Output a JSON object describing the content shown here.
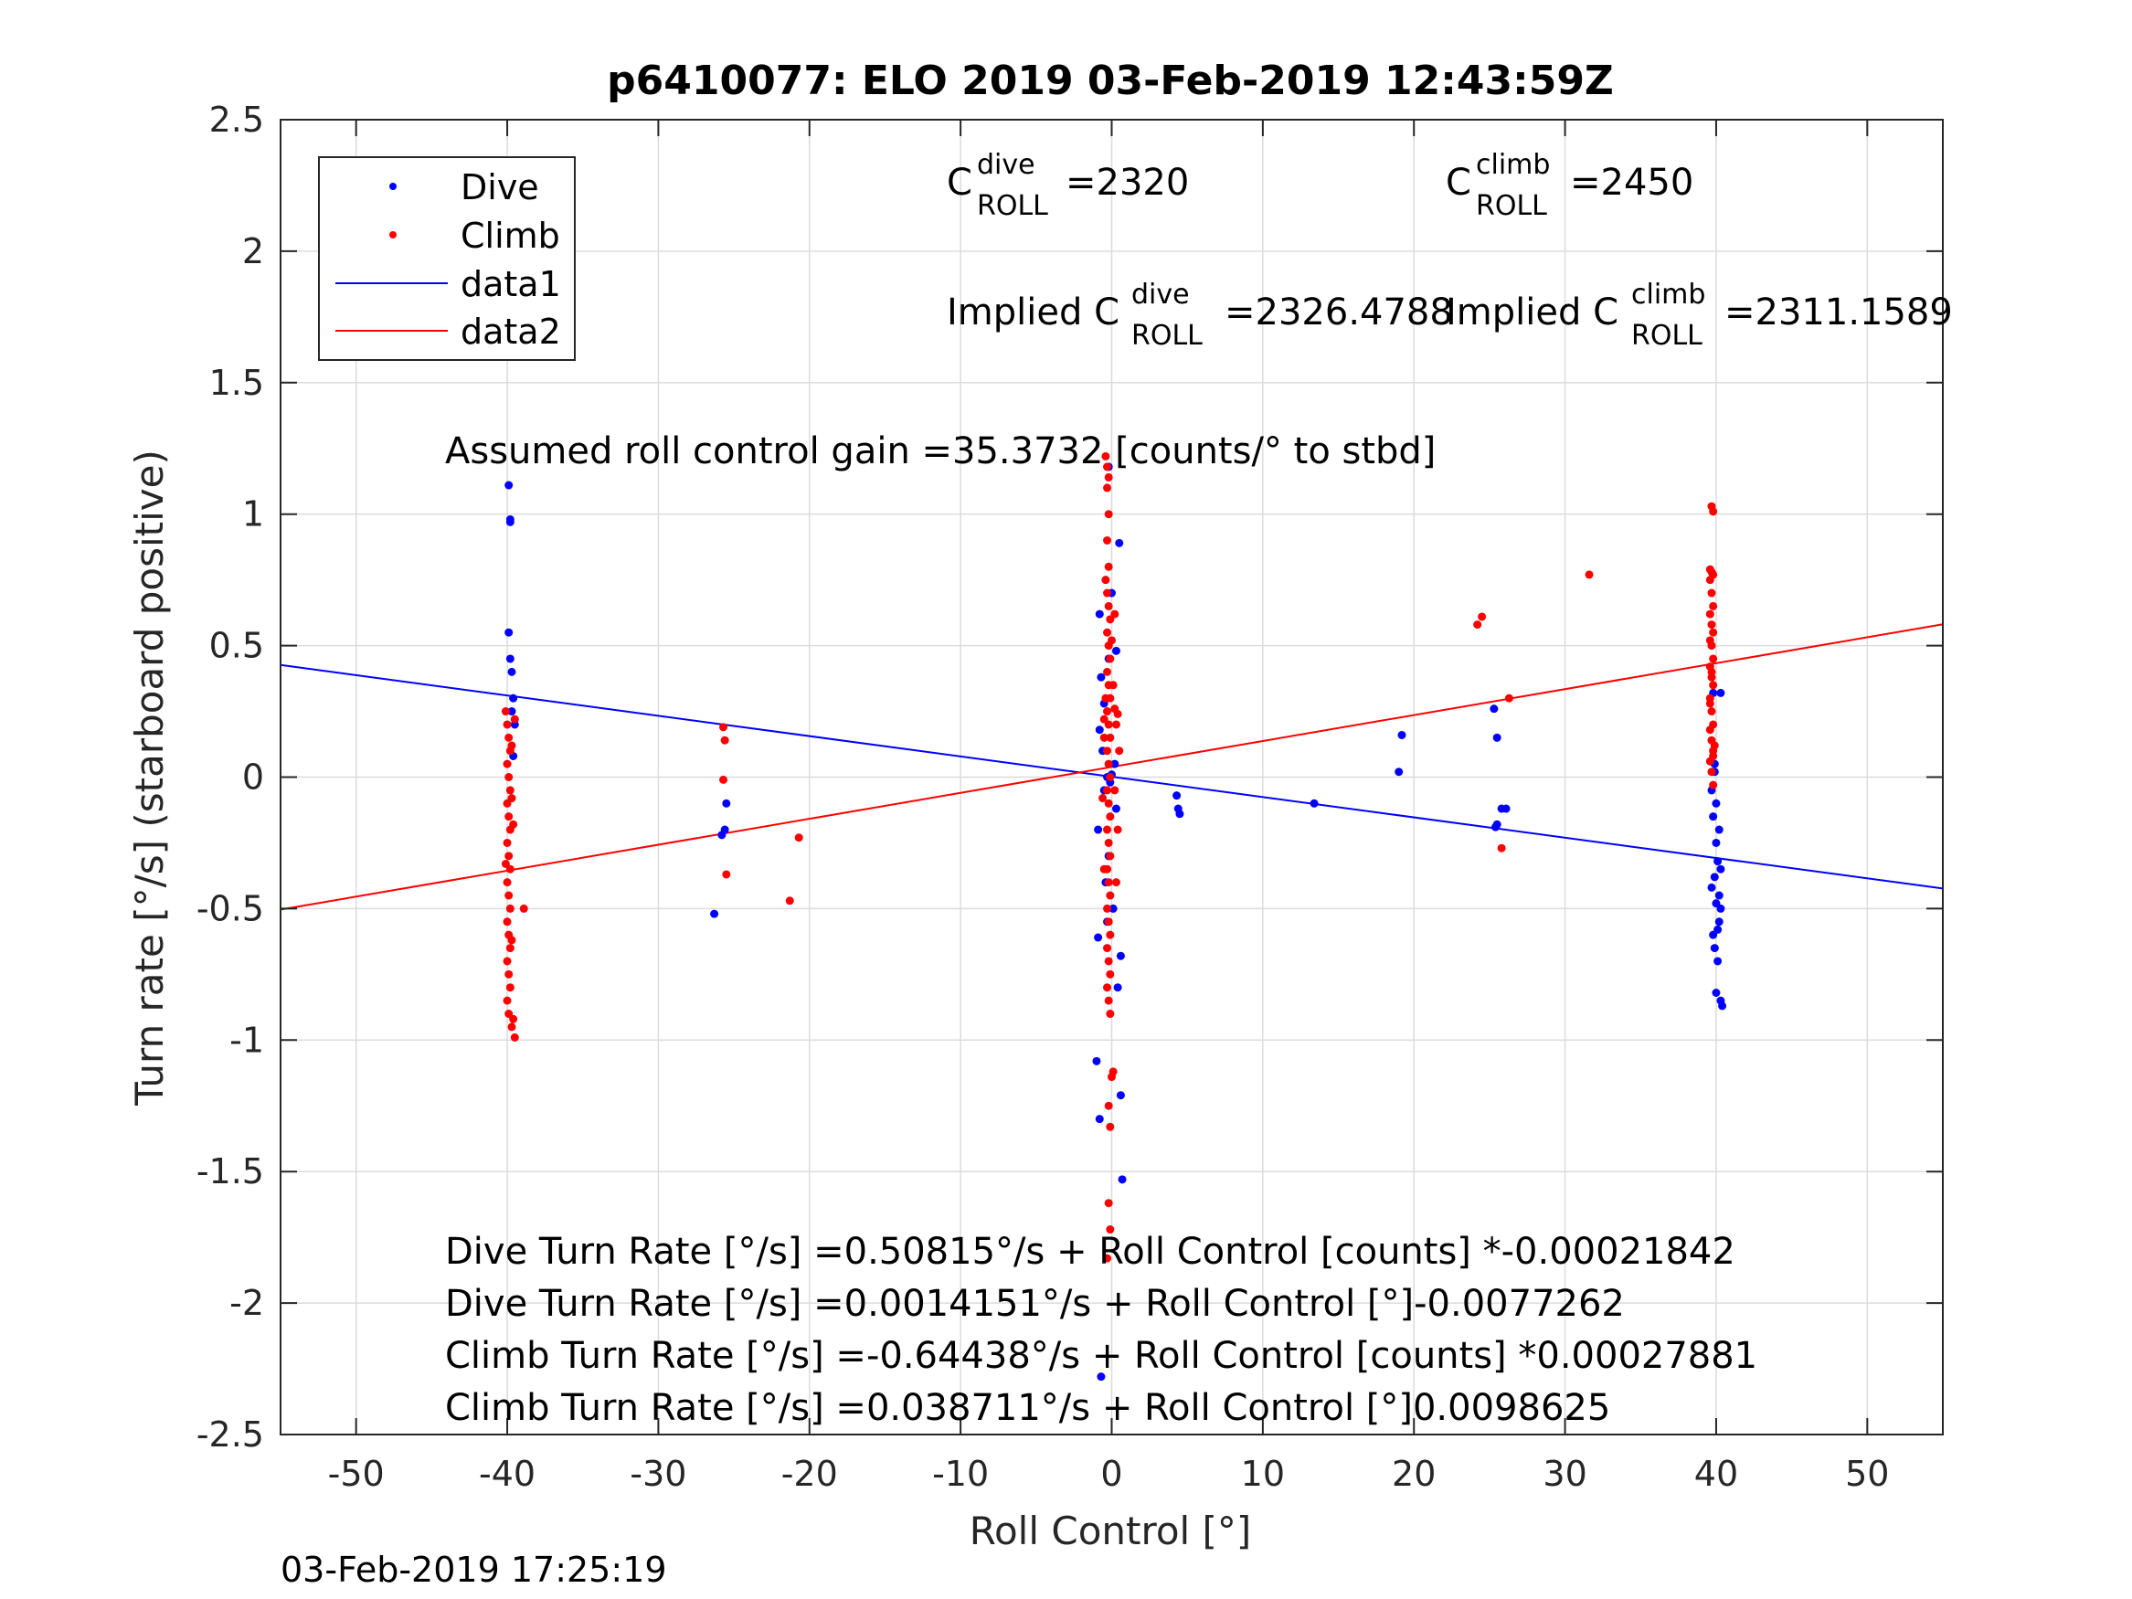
{
  "figure": {
    "title": "p6410077: ELO 2019 03-Feb-2019 12:43:59Z",
    "timestamp": "03-Feb-2019 17:25:19"
  },
  "annotations": {
    "c_dive": {
      "pre": "C",
      "sup": "dive",
      "sub": "ROLL",
      "value": "=2320"
    },
    "c_climb": {
      "pre": "C",
      "sup": "climb",
      "sub": "ROLL",
      "value": "=2450"
    },
    "implied_dive": {
      "pre": "Implied C",
      "sup": "dive",
      "sub": "ROLL",
      "value": "=2326.4788"
    },
    "implied_climb": {
      "pre": "Implied C",
      "sup": "climb",
      "sub": "ROLL",
      "value": "=2311.1589"
    },
    "gain": "Assumed roll control gain =35.3732 [counts/° to stbd]",
    "equations": [
      "Dive Turn Rate [°/s] =0.50815°/s + Roll Control [counts] *-0.00021842",
      "Dive Turn Rate [°/s] =0.0014151°/s + Roll Control [°]-0.0077262",
      "Climb Turn Rate [°/s] =-0.64438°/s + Roll Control [counts] *0.00027881",
      "Climb Turn Rate [°/s] =0.038711°/s + Roll Control [°]0.0098625"
    ]
  },
  "colors": {
    "dive": "#0000ff",
    "climb": "#ff0000",
    "grid": "#dcdcdc",
    "axis": "#262626"
  },
  "chart_data": {
    "type": "scatter",
    "title": "p6410077: ELO 2019 03-Feb-2019 12:43:59Z",
    "xlabel": "Roll Control [°]",
    "ylabel": "Turn rate [°/s] (starboard positive)",
    "xlim": [
      -55,
      55
    ],
    "ylim": [
      -2.5,
      2.5
    ],
    "xticks": [
      -50,
      -40,
      -30,
      -20,
      -10,
      0,
      10,
      20,
      30,
      40,
      50
    ],
    "xtick_labels": [
      "-50",
      "-40",
      "-30",
      "-20",
      "-10",
      "0",
      "10",
      "20",
      "30",
      "40",
      "50"
    ],
    "yticks": [
      -2.5,
      -2,
      -1.5,
      -1,
      -0.5,
      0,
      0.5,
      1,
      1.5,
      2,
      2.5
    ],
    "ytick_labels": [
      "-2.5",
      "-2",
      "-1.5",
      "-1",
      "-0.5",
      "0",
      "0.5",
      "1",
      "1.5",
      "2",
      "2.5"
    ],
    "grid": true,
    "legend": {
      "position": "top-left",
      "entries": [
        "Dive",
        "Climb",
        "data1",
        "data2"
      ]
    },
    "series": [
      {
        "name": "Dive",
        "kind": "points",
        "color": "#0000ff",
        "points": [
          [
            -39.9,
            1.11
          ],
          [
            -39.8,
            0.98
          ],
          [
            -39.8,
            0.97
          ],
          [
            -39.9,
            0.55
          ],
          [
            -39.8,
            0.45
          ],
          [
            -39.7,
            0.4
          ],
          [
            -39.6,
            0.3
          ],
          [
            -39.5,
            0.2
          ],
          [
            -39.6,
            0.08
          ],
          [
            -39.7,
            0.25
          ],
          [
            -26.3,
            -0.52
          ],
          [
            -25.8,
            -0.22
          ],
          [
            -25.6,
            -0.2
          ],
          [
            -25.5,
            -0.1
          ],
          [
            -1.0,
            -1.08
          ],
          [
            -0.8,
            -1.3
          ],
          [
            -0.9,
            -0.61
          ],
          [
            -0.9,
            -0.2
          ],
          [
            -0.8,
            0.18
          ],
          [
            -0.7,
            0.38
          ],
          [
            -0.8,
            0.62
          ],
          [
            -0.6,
            0.1
          ],
          [
            -0.5,
            -0.05
          ],
          [
            -0.4,
            -0.4
          ],
          [
            -0.3,
            -0.55
          ],
          [
            -0.2,
            0.45
          ],
          [
            -0.3,
            0.0
          ],
          [
            -0.1,
            -0.02
          ],
          [
            0.0,
            0.01
          ],
          [
            0.2,
            0.05
          ],
          [
            0.3,
            -0.12
          ],
          [
            -0.2,
            -0.3
          ],
          [
            0.3,
            0.48
          ],
          [
            0.5,
            0.89
          ],
          [
            0.6,
            -0.68
          ],
          [
            0.6,
            -1.21
          ],
          [
            0.7,
            -1.53
          ],
          [
            0.4,
            -0.8
          ],
          [
            -0.2,
            1.18
          ],
          [
            0.0,
            0.7
          ],
          [
            -0.5,
            0.28
          ],
          [
            0.1,
            -0.5
          ],
          [
            -0.7,
            -2.28
          ],
          [
            4.3,
            -0.07
          ],
          [
            4.4,
            -0.12
          ],
          [
            4.5,
            -0.14
          ],
          [
            13.4,
            -0.1
          ],
          [
            19.2,
            0.16
          ],
          [
            19.0,
            0.02
          ],
          [
            25.3,
            0.26
          ],
          [
            25.5,
            0.15
          ],
          [
            25.5,
            -0.18
          ],
          [
            25.8,
            -0.12
          ],
          [
            26.1,
            -0.12
          ],
          [
            25.4,
            -0.19
          ],
          [
            39.8,
            0.32
          ],
          [
            39.9,
            0.05
          ],
          [
            39.7,
            -0.05
          ],
          [
            39.8,
            -0.15
          ],
          [
            40.0,
            -0.25
          ],
          [
            40.1,
            -0.32
          ],
          [
            39.9,
            -0.38
          ],
          [
            39.7,
            -0.42
          ],
          [
            40.0,
            -0.48
          ],
          [
            40.2,
            -0.55
          ],
          [
            39.8,
            -0.6
          ],
          [
            40.1,
            -0.7
          ],
          [
            40.0,
            -0.82
          ],
          [
            40.3,
            -0.85
          ],
          [
            40.4,
            -0.87
          ],
          [
            40.3,
            -0.5
          ],
          [
            40.2,
            -0.45
          ],
          [
            40.3,
            -0.35
          ],
          [
            40.2,
            -0.2
          ],
          [
            40.3,
            0.32
          ],
          [
            39.9,
            0.02
          ],
          [
            40.0,
            -0.1
          ],
          [
            40.1,
            -0.58
          ],
          [
            39.9,
            -0.65
          ]
        ]
      },
      {
        "name": "Climb",
        "kind": "points",
        "color": "#ff0000",
        "points": [
          [
            -40.1,
            0.25
          ],
          [
            -40.0,
            0.2
          ],
          [
            -39.9,
            0.15
          ],
          [
            -39.8,
            0.1
          ],
          [
            -40.0,
            0.05
          ],
          [
            -39.9,
            0.0
          ],
          [
            -39.8,
            -0.05
          ],
          [
            -40.0,
            -0.1
          ],
          [
            -39.9,
            -0.15
          ],
          [
            -39.8,
            -0.2
          ],
          [
            -40.0,
            -0.25
          ],
          [
            -39.9,
            -0.3
          ],
          [
            -39.8,
            -0.35
          ],
          [
            -40.0,
            -0.4
          ],
          [
            -39.9,
            -0.45
          ],
          [
            -39.8,
            -0.5
          ],
          [
            -40.0,
            -0.55
          ],
          [
            -39.9,
            -0.6
          ],
          [
            -39.8,
            -0.65
          ],
          [
            -40.0,
            -0.7
          ],
          [
            -39.9,
            -0.75
          ],
          [
            -39.8,
            -0.8
          ],
          [
            -40.0,
            -0.85
          ],
          [
            -39.9,
            -0.9
          ],
          [
            -39.7,
            -0.95
          ],
          [
            -39.5,
            -0.99
          ],
          [
            -39.6,
            -0.92
          ],
          [
            -39.7,
            -0.62
          ],
          [
            -39.6,
            -0.18
          ],
          [
            -39.5,
            0.22
          ],
          [
            -38.9,
            -0.5
          ],
          [
            -40.1,
            -0.33
          ],
          [
            -39.7,
            -0.08
          ],
          [
            -39.7,
            0.12
          ],
          [
            -25.7,
            0.19
          ],
          [
            -25.6,
            0.14
          ],
          [
            -25.7,
            -0.01
          ],
          [
            -25.5,
            -0.37
          ],
          [
            -20.7,
            -0.23
          ],
          [
            -21.3,
            -0.47
          ],
          [
            -0.4,
            1.22
          ],
          [
            -0.3,
            1.18
          ],
          [
            -0.2,
            1.14
          ],
          [
            -0.3,
            1.1
          ],
          [
            -0.2,
            1.0
          ],
          [
            -0.3,
            0.9
          ],
          [
            -0.2,
            0.8
          ],
          [
            -0.4,
            0.75
          ],
          [
            -0.3,
            0.7
          ],
          [
            -0.2,
            0.65
          ],
          [
            -0.1,
            0.6
          ],
          [
            -0.3,
            0.55
          ],
          [
            -0.2,
            0.5
          ],
          [
            -0.1,
            0.45
          ],
          [
            -0.3,
            0.4
          ],
          [
            -0.2,
            0.35
          ],
          [
            -0.1,
            0.3
          ],
          [
            -0.3,
            0.25
          ],
          [
            -0.2,
            0.2
          ],
          [
            -0.1,
            0.15
          ],
          [
            -0.3,
            0.1
          ],
          [
            -0.2,
            0.05
          ],
          [
            -0.1,
            0.0
          ],
          [
            -0.3,
            -0.05
          ],
          [
            -0.2,
            -0.1
          ],
          [
            -0.1,
            -0.15
          ],
          [
            -0.3,
            -0.2
          ],
          [
            -0.2,
            -0.25
          ],
          [
            -0.1,
            -0.3
          ],
          [
            -0.3,
            -0.35
          ],
          [
            -0.2,
            -0.4
          ],
          [
            -0.1,
            -0.45
          ],
          [
            -0.3,
            -0.5
          ],
          [
            -0.2,
            -0.55
          ],
          [
            -0.1,
            -0.6
          ],
          [
            -0.3,
            -0.65
          ],
          [
            -0.2,
            -0.7
          ],
          [
            -0.1,
            -0.75
          ],
          [
            -0.3,
            -0.8
          ],
          [
            -0.2,
            -0.85
          ],
          [
            -0.1,
            -0.9
          ],
          [
            0.0,
            -1.14
          ],
          [
            0.1,
            -1.12
          ],
          [
            -0.2,
            -1.25
          ],
          [
            -0.1,
            -1.33
          ],
          [
            -0.2,
            -1.62
          ],
          [
            -0.1,
            -1.72
          ],
          [
            -0.3,
            -1.83
          ],
          [
            0.2,
            0.26
          ],
          [
            0.4,
            0.24
          ],
          [
            0.5,
            0.1
          ],
          [
            0.3,
            0.2
          ],
          [
            0.1,
            0.35
          ],
          [
            -0.5,
            0.22
          ],
          [
            -0.6,
            -0.08
          ],
          [
            -0.5,
            0.15
          ],
          [
            0.3,
            -0.4
          ],
          [
            0.4,
            -0.2
          ],
          [
            0.2,
            -0.05
          ],
          [
            -0.4,
            0.3
          ],
          [
            -0.5,
            -0.35
          ],
          [
            0.0,
            0.52
          ],
          [
            0.2,
            0.62
          ],
          [
            24.2,
            0.58
          ],
          [
            24.5,
            0.61
          ],
          [
            25.8,
            -0.27
          ],
          [
            26.3,
            0.3
          ],
          [
            31.6,
            0.77
          ],
          [
            39.7,
            1.03
          ],
          [
            39.8,
            1.01
          ],
          [
            39.6,
            0.79
          ],
          [
            39.7,
            0.78
          ],
          [
            39.8,
            0.77
          ],
          [
            39.6,
            0.75
          ],
          [
            39.7,
            0.7
          ],
          [
            39.8,
            0.65
          ],
          [
            39.6,
            0.62
          ],
          [
            39.7,
            0.58
          ],
          [
            39.8,
            0.55
          ],
          [
            39.6,
            0.52
          ],
          [
            39.7,
            0.5
          ],
          [
            39.8,
            0.45
          ],
          [
            39.6,
            0.42
          ],
          [
            39.7,
            0.38
          ],
          [
            39.8,
            0.35
          ],
          [
            39.6,
            0.3
          ],
          [
            39.7,
            0.25
          ],
          [
            39.8,
            0.2
          ],
          [
            39.6,
            0.18
          ],
          [
            39.7,
            0.14
          ],
          [
            39.8,
            0.1
          ],
          [
            39.6,
            0.06
          ],
          [
            39.7,
            0.02
          ],
          [
            39.8,
            -0.03
          ],
          [
            39.6,
            0.28
          ],
          [
            39.8,
            0.08
          ],
          [
            39.7,
            0.4
          ],
          [
            39.9,
            0.12
          ]
        ]
      },
      {
        "name": "data1",
        "kind": "line",
        "color": "#0000ff",
        "intercept": 0.0014151,
        "slope": -0.0077262
      },
      {
        "name": "data2",
        "kind": "line",
        "color": "#ff0000",
        "intercept": 0.038711,
        "slope": 0.0098625
      }
    ]
  }
}
